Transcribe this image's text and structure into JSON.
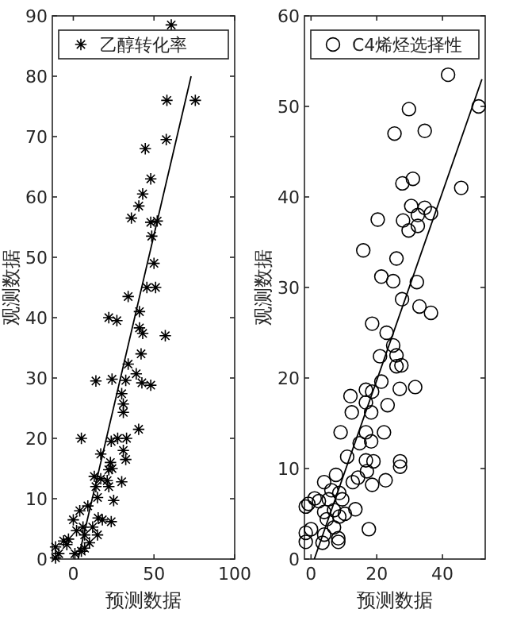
{
  "chart_data": [
    {
      "type": "scatter",
      "xlabel": "预测数据",
      "ylabel": "观测数据",
      "xlim": [
        -13,
        100
      ],
      "xticks": [
        0,
        50,
        100
      ],
      "ylim": [
        0,
        90
      ],
      "yticks": [
        0,
        10,
        20,
        30,
        40,
        50,
        60,
        70,
        80,
        90
      ],
      "grid": false,
      "legend": "top",
      "series": [
        {
          "name": "乙醇转化率",
          "color": "#000000",
          "marker": "cross",
          "x": [
            60.7,
            58,
            75.6,
            57.6,
            44.6,
            48,
            43,
            40.6,
            36,
            48,
            52,
            48.6,
            50,
            45.6,
            51,
            34,
            22,
            27,
            41,
            41,
            43,
            57,
            42,
            34,
            39,
            14,
            24,
            32.5,
            42.5,
            48,
            30,
            31,
            31,
            40.5,
            5,
            23.5,
            27.5,
            33,
            31,
            32.5,
            17,
            23,
            22,
            24,
            13,
            17,
            21,
            30,
            14,
            22,
            25,
            15,
            9,
            4,
            0,
            15.4,
            18,
            23.5,
            6,
            12,
            7,
            15,
            7,
            -3,
            -6,
            -11,
            -9,
            1,
            5,
            -11,
            2,
            -4,
            10
          ],
          "values": [
            88.5,
            76,
            76,
            69.5,
            68,
            63,
            60.5,
            58.5,
            56.5,
            55.8,
            56,
            53.5,
            49,
            45,
            45,
            43.5,
            40,
            39.5,
            41,
            38.3,
            37.4,
            37,
            34,
            32.3,
            30.7,
            29.5,
            29.8,
            29.6,
            29.2,
            28.8,
            27.4,
            25.7,
            24.3,
            21.5,
            20,
            19.5,
            20,
            20,
            18,
            16.5,
            17.4,
            16,
            14.8,
            15,
            13.7,
            13.3,
            13,
            12.8,
            12,
            12,
            9.7,
            10.2,
            8.8,
            8,
            6.5,
            6.8,
            6.5,
            6.2,
            5.3,
            5.3,
            4,
            4,
            1.8,
            3.3,
            3,
            2,
            0.9,
            0.9,
            1.3,
            0.2,
            4.7,
            2.4,
            2.7
          ]
        },
        {
          "type": "line",
          "color": "#000000",
          "marker": "none",
          "x": [
            3,
            73
          ],
          "values": [
            0,
            80
          ]
        }
      ]
    },
    {
      "type": "scatter",
      "xlabel": "预测数据",
      "ylabel": "观测数据",
      "xlim": [
        -2,
        53
      ],
      "xticks": [
        0,
        20,
        40
      ],
      "ylim": [
        0,
        60
      ],
      "yticks": [
        0,
        10,
        20,
        30,
        40,
        50,
        60
      ],
      "grid": false,
      "legend": "top",
      "series": [
        {
          "name": "C4烯烃选择性",
          "color": "#000000",
          "marker": "circle",
          "x": [
            41.7,
            51,
            29.8,
            25.4,
            34.6,
            31,
            27.8,
            45.7,
            30.5,
            34.6,
            36.5,
            32.5,
            28,
            20.3,
            32.5,
            29.7,
            15.9,
            26,
            21.4,
            25,
            32.2,
            27.7,
            33,
            36.5,
            18.6,
            23,
            25,
            21,
            26,
            27.5,
            26,
            31.7,
            27,
            21.4,
            16.7,
            18.6,
            12,
            23.3,
            16.7,
            12.4,
            18.3,
            9,
            16.7,
            22.2,
            14.8,
            18.3,
            11,
            16.7,
            19,
            27.1,
            27.1,
            17,
            14.3,
            22.7,
            18.6,
            12.7,
            7.6,
            4,
            6.2,
            8.6,
            1.1,
            -0.8,
            2.4,
            -1.6,
            5.4,
            9.5,
            4,
            7,
            13.5,
            10.3,
            8.6,
            4.8,
            7,
            4,
            8.3,
            8.3,
            3.5,
            -1.6,
            -1.6,
            0,
            17.6
          ],
          "values": [
            53.5,
            50,
            49.7,
            47,
            47.3,
            42,
            41.5,
            41,
            39,
            38.8,
            38.2,
            38,
            37.4,
            37.5,
            36.8,
            36.3,
            34.1,
            33.2,
            31.2,
            30.7,
            30.6,
            28.7,
            27.9,
            27.2,
            26,
            25,
            23.6,
            22.4,
            22.5,
            21.4,
            21.3,
            19,
            18.8,
            19.6,
            18.7,
            18.5,
            18,
            17,
            17.3,
            16.2,
            16.2,
            14,
            14,
            14,
            12.8,
            13,
            11.3,
            10.9,
            10.8,
            10.8,
            10.2,
            9.7,
            9,
            8.7,
            8.2,
            8.5,
            9.3,
            8.5,
            7.6,
            7.3,
            6.7,
            6.1,
            6.4,
            5.8,
            6.6,
            6.6,
            5.2,
            5.4,
            5.5,
            5,
            4.7,
            4.4,
            3.5,
            2.7,
            2.3,
            1.9,
            1.8,
            2.9,
            1.9,
            3.3,
            3.3
          ]
        },
        {
          "type": "line",
          "color": "#000000",
          "marker": "none",
          "x": [
            1,
            52
          ],
          "values": [
            0,
            53
          ]
        }
      ]
    }
  ]
}
